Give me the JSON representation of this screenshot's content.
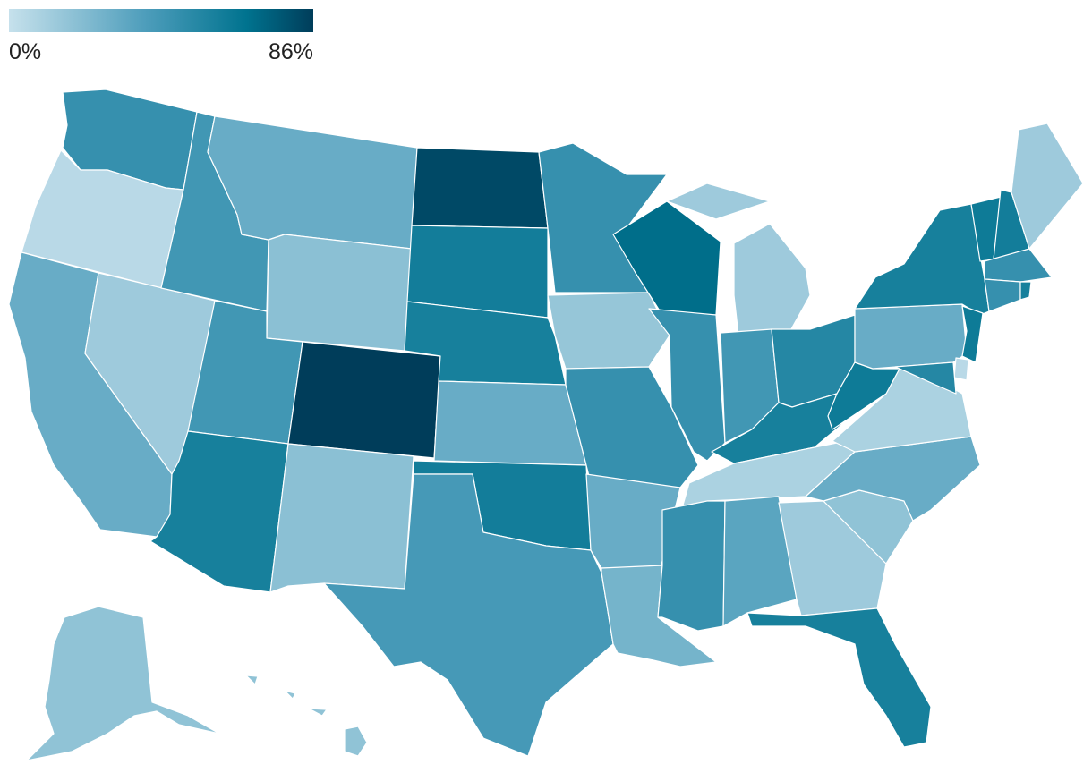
{
  "legend": {
    "min_label": "0%",
    "max_label": "86%",
    "min_color": "#c6e1ec",
    "mid_color": "#4d9dbb",
    "accent_color": "#00738f",
    "max_color": "#003d5a"
  },
  "states": [
    {
      "id": "WA",
      "level": 0.55
    },
    {
      "id": "OR",
      "level": 0.05
    },
    {
      "id": "CA",
      "level": 0.35
    },
    {
      "id": "NV",
      "level": 0.15
    },
    {
      "id": "ID",
      "level": 0.5
    },
    {
      "id": "MT",
      "level": 0.35
    },
    {
      "id": "WY",
      "level": 0.22
    },
    {
      "id": "UT",
      "level": 0.5
    },
    {
      "id": "AZ",
      "level": 0.68
    },
    {
      "id": "CO",
      "level": 1.0
    },
    {
      "id": "NM",
      "level": 0.22
    },
    {
      "id": "ND",
      "level": 0.95
    },
    {
      "id": "SD",
      "level": 0.7
    },
    {
      "id": "NE",
      "level": 0.68
    },
    {
      "id": "KS",
      "level": 0.35
    },
    {
      "id": "OK",
      "level": 0.7
    },
    {
      "id": "TX",
      "level": 0.48
    },
    {
      "id": "MN",
      "level": 0.55
    },
    {
      "id": "IA",
      "level": 0.18
    },
    {
      "id": "MO",
      "level": 0.55
    },
    {
      "id": "AR",
      "level": 0.35
    },
    {
      "id": "LA",
      "level": 0.3
    },
    {
      "id": "WI",
      "level": 0.8
    },
    {
      "id": "IL",
      "level": 0.55
    },
    {
      "id": "MI",
      "level": 0.15
    },
    {
      "id": "IN",
      "level": 0.5
    },
    {
      "id": "OH",
      "level": 0.62
    },
    {
      "id": "KY",
      "level": 0.68
    },
    {
      "id": "TN",
      "level": 0.1
    },
    {
      "id": "MS",
      "level": 0.55
    },
    {
      "id": "AL",
      "level": 0.4
    },
    {
      "id": "GA",
      "level": 0.15
    },
    {
      "id": "FL",
      "level": 0.68
    },
    {
      "id": "SC",
      "level": 0.2
    },
    {
      "id": "NC",
      "level": 0.35
    },
    {
      "id": "VA",
      "level": 0.1
    },
    {
      "id": "WV",
      "level": 0.72
    },
    {
      "id": "PA",
      "level": 0.35
    },
    {
      "id": "NY",
      "level": 0.68
    },
    {
      "id": "VT",
      "level": 0.72
    },
    {
      "id": "NH",
      "level": 0.7
    },
    {
      "id": "ME",
      "level": 0.15
    },
    {
      "id": "MA",
      "level": 0.55
    },
    {
      "id": "RI",
      "level": 0.68
    },
    {
      "id": "CT",
      "level": 0.55
    },
    {
      "id": "NJ",
      "level": 0.72
    },
    {
      "id": "DE",
      "level": 0.05
    },
    {
      "id": "MD",
      "level": 0.62
    },
    {
      "id": "AK",
      "level": 0.2
    },
    {
      "id": "HI",
      "level": 0.2
    }
  ]
}
